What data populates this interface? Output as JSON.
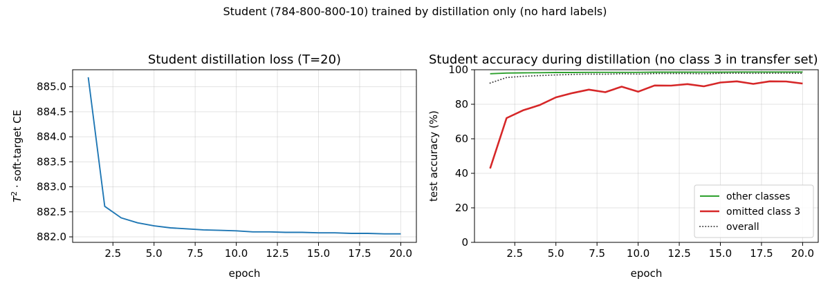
{
  "figure": {
    "suptitle": "Student (784-800-800-10) trained by distillation only (no hard labels)"
  },
  "chart_data": [
    {
      "type": "line",
      "title": "Student distillation loss (T=20)",
      "xlabel": "epoch",
      "ylabel": "T² · soft-target CE",
      "xlim": [
        0.05,
        20.95
      ],
      "ylim": [
        881.89,
        885.34
      ],
      "xticks": [
        "2.5",
        "5.0",
        "7.5",
        "10.0",
        "12.5",
        "15.0",
        "17.5",
        "20.0"
      ],
      "yticks": [
        "882.0",
        "882.5",
        "883.0",
        "883.5",
        "884.0",
        "884.5",
        "885.0"
      ],
      "grid": true,
      "series": [
        {
          "color": "#1f77b4",
          "x": [
            1,
            2,
            3,
            4,
            5,
            6,
            7,
            8,
            9,
            10,
            11,
            12,
            13,
            14,
            15,
            16,
            17,
            18,
            19,
            20
          ],
          "y": [
            885.19,
            882.61,
            882.38,
            882.28,
            882.22,
            882.18,
            882.16,
            882.14,
            882.13,
            882.12,
            882.1,
            882.1,
            882.09,
            882.09,
            882.08,
            882.08,
            882.07,
            882.07,
            882.06,
            882.06
          ]
        }
      ]
    },
    {
      "type": "line",
      "title": "Student accuracy during distillation (no class 3 in transfer set)",
      "xlabel": "epoch",
      "ylabel": "test accuracy (%)",
      "xlim": [
        0.05,
        20.95
      ],
      "ylim": [
        0,
        100
      ],
      "xticks": [
        "2.5",
        "5.0",
        "7.5",
        "10.0",
        "12.5",
        "15.0",
        "17.5",
        "20.0"
      ],
      "yticks": [
        "0",
        "20",
        "40",
        "60",
        "80",
        "100"
      ],
      "grid": true,
      "legend": "lower-right",
      "series": [
        {
          "name": "other classes",
          "color": "#2ca02c",
          "style": "solid",
          "x": [
            1,
            2,
            3,
            4,
            5,
            6,
            7,
            8,
            9,
            10,
            11,
            12,
            13,
            14,
            15,
            16,
            17,
            18,
            19,
            20
          ],
          "y": [
            97.7,
            98.1,
            98.2,
            98.3,
            98.4,
            98.4,
            98.5,
            98.5,
            98.5,
            98.5,
            98.6,
            98.6,
            98.6,
            98.6,
            98.6,
            98.7,
            98.7,
            98.7,
            98.7,
            98.7
          ]
        },
        {
          "name": "omitted class 3",
          "color": "#d62728",
          "style": "solid",
          "x": [
            1,
            2,
            3,
            4,
            5,
            6,
            7,
            8,
            9,
            10,
            11,
            12,
            13,
            14,
            15,
            16,
            17,
            18,
            19,
            20
          ],
          "y": [
            42.8,
            72.0,
            76.5,
            79.5,
            84.0,
            86.5,
            88.5,
            87.0,
            90.2,
            87.3,
            90.9,
            90.8,
            91.7,
            90.4,
            92.6,
            93.3,
            91.8,
            93.3,
            93.2,
            92.0
          ]
        },
        {
          "name": "overall",
          "color": "#444444",
          "style": "dotted",
          "x": [
            1,
            2,
            3,
            4,
            5,
            6,
            7,
            8,
            9,
            10,
            11,
            12,
            13,
            14,
            15,
            16,
            17,
            18,
            19,
            20
          ],
          "y": [
            92.3,
            95.5,
            96.2,
            96.6,
            97.0,
            97.3,
            97.5,
            97.4,
            97.7,
            97.5,
            97.8,
            97.8,
            97.8,
            97.7,
            97.9,
            98.0,
            97.9,
            98.0,
            98.0,
            97.9
          ]
        }
      ]
    }
  ]
}
